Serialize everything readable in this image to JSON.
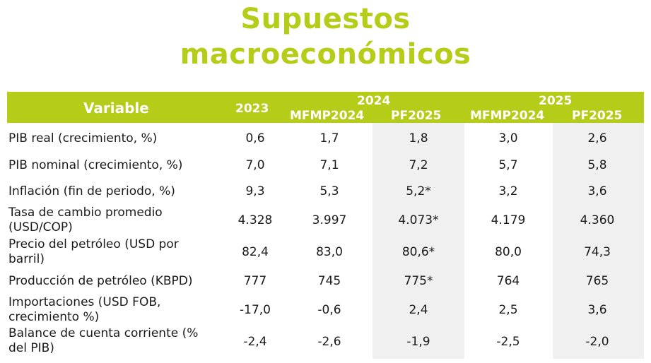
{
  "title": {
    "line1": "Supuestos",
    "line2": "macroeconómicos"
  },
  "header": {
    "variable": "Variable",
    "year2023": "2023",
    "year2024": "2024",
    "year2025": "2025",
    "sub2024a": "MFMP2024",
    "sub2024b": "PF2025",
    "sub2025a": "MFMP2024",
    "sub2025b": "PF2025"
  },
  "rows": [
    {
      "label": "PIB real (crecimiento, %)",
      "values": [
        "0,6",
        "1,7",
        "1,8",
        "3,0",
        "2,6"
      ]
    },
    {
      "label": "PIB nominal (crecimiento, %)",
      "values": [
        "7,0",
        "7,1",
        "7,2",
        "5,7",
        "5,8"
      ]
    },
    {
      "label": "Inflación (fin de periodo, %)",
      "values": [
        "9,3",
        "5,3",
        "5,2*",
        "3,2",
        "3,6"
      ]
    },
    {
      "label1": "Tasa de cambio promedio",
      "label2": "(USD/COP)",
      "values": [
        "4.328",
        "3.997",
        "4.073*",
        "4.179",
        "4.360"
      ]
    },
    {
      "label1": "Precio del petróleo (USD por",
      "label2": "barril)",
      "values": [
        "82,4",
        "83,0",
        "80,6*",
        "80,0",
        "74,3"
      ]
    },
    {
      "label": "Producción de petróleo (KBPD)",
      "values": [
        "777",
        "745",
        "775*",
        "764",
        "765"
      ]
    },
    {
      "label1": "Importaciones (USD FOB,",
      "label2": "crecimiento %)",
      "values": [
        "-17,0",
        "-0,6",
        "2,4",
        "2,5",
        "3,6"
      ]
    },
    {
      "label1": "Balance de cuenta corriente (%",
      "label2": "del PIB)",
      "values": [
        "-2,4",
        "-2,6",
        "-1,9",
        "-2,5",
        "-2,0"
      ]
    }
  ]
}
